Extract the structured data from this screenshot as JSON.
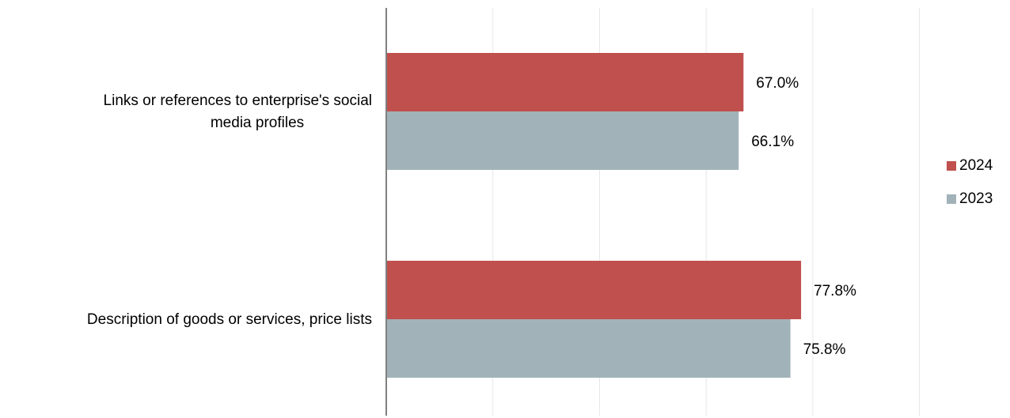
{
  "colors": {
    "2024": "#c0504d",
    "2023": "#a2b2b9",
    "grid": "#e6e6e6",
    "axis": "#808080"
  },
  "chart_data": {
    "type": "bar",
    "orientation": "horizontal",
    "categories": [
      "Links or references to enterprise's social media profiles",
      "Description of goods or services, price lists"
    ],
    "series": [
      {
        "name": "2024",
        "values": [
          67.0,
          77.8
        ]
      },
      {
        "name": "2023",
        "values": [
          66.1,
          75.8
        ]
      }
    ],
    "value_labels": {
      "2024": [
        "67.0%",
        "77.8%"
      ],
      "2023": [
        "66.1%",
        "75.8%"
      ]
    },
    "xlim": [
      0,
      100
    ],
    "grid": true,
    "legend_position": "right"
  },
  "labels": {
    "cat1_line1": "Links or references to enterprise's social",
    "cat1_line2": "media profiles",
    "cat2": "Description of goods or services, price lists"
  },
  "legend": {
    "item1": "2024",
    "item2": "2023"
  }
}
